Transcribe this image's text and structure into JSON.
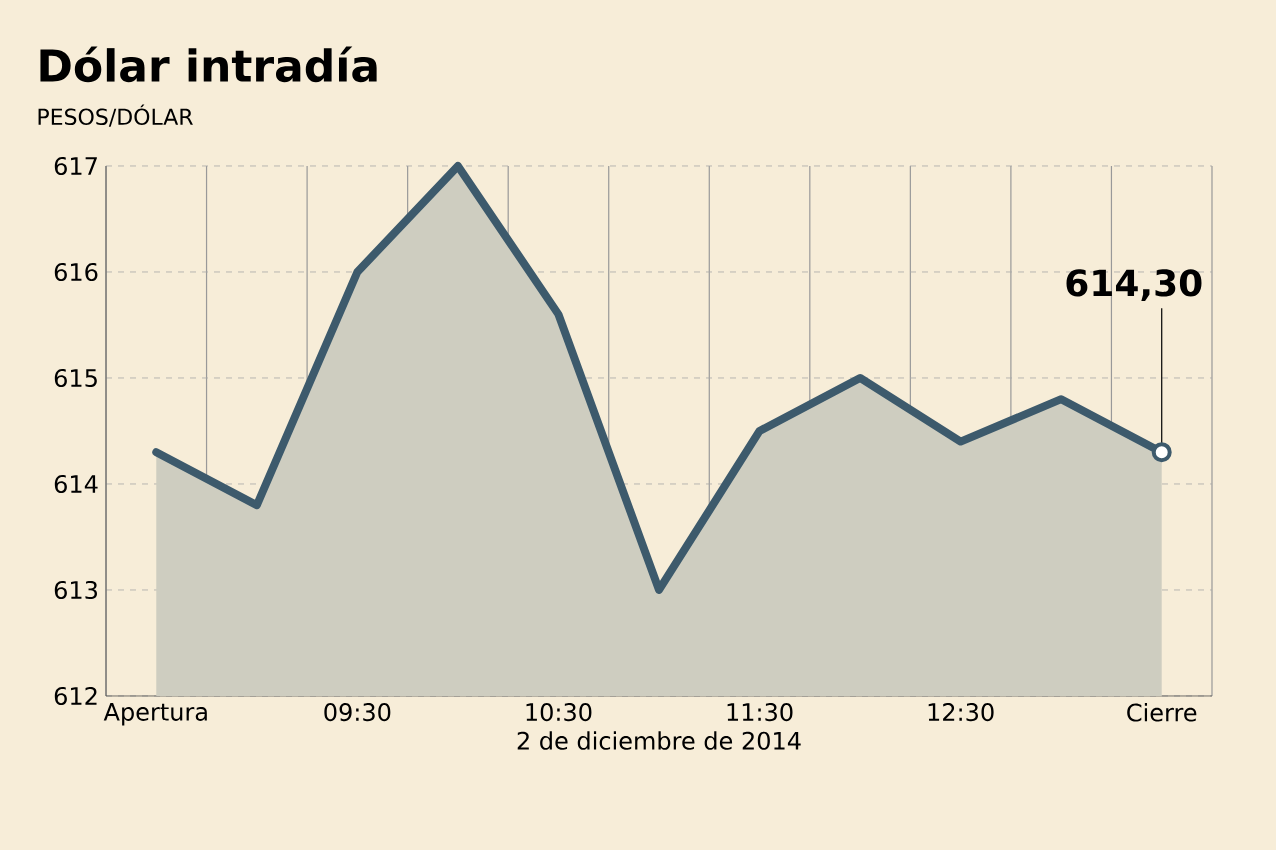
{
  "chart_data": {
    "type": "area",
    "title": "Dólar intradía",
    "xlabel": "2 de diciembre de 2014",
    "categories": [
      "Apertura",
      null,
      "09:30",
      null,
      "10:30",
      null,
      "11:30",
      null,
      "12:30",
      null,
      "Cierre"
    ],
    "series": [
      {
        "color": "#3d5a6c",
        "values": [
          614.3,
          613.8,
          616.0,
          617.0,
          615.6,
          613.0,
          614.5,
          615.0,
          614.4,
          614.8,
          614.3
        ]
      }
    ],
    "ylim": [
      612,
      617
    ],
    "yticks": [
      612,
      613,
      614,
      615,
      616,
      617
    ],
    "grid": true,
    "annotations": [
      "PESOS/DÓLAR",
      {
        "text": "614,30",
        "x": "Cierre",
        "y": 614.3
      }
    ]
  }
}
